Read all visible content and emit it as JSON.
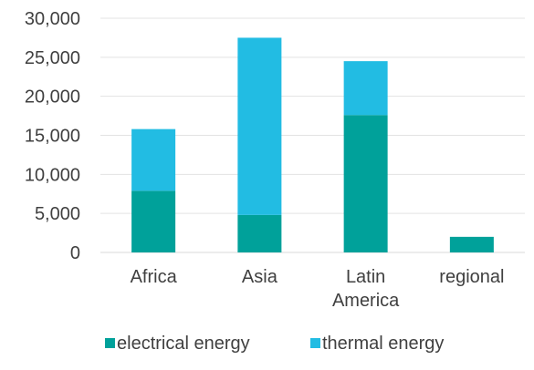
{
  "chart_data": {
    "type": "bar",
    "stacked": true,
    "categories": [
      "Africa",
      "Asia",
      "Latin America",
      "regional"
    ],
    "category_label_lines": [
      [
        "Africa"
      ],
      [
        "Asia"
      ],
      [
        "Latin",
        "America"
      ],
      [
        "regional"
      ]
    ],
    "series": [
      {
        "name": "electrical energy",
        "color": "#00A19A",
        "values": [
          7900,
          4800,
          17600,
          2000
        ]
      },
      {
        "name": "thermal energy",
        "color": "#22BCE3",
        "values": [
          7900,
          22700,
          6900,
          0
        ]
      }
    ],
    "y_ticks": [
      "0",
      "5,000",
      "10,000",
      "15,000",
      "20,000",
      "25,000",
      "30,000"
    ],
    "ylim": [
      0,
      30000
    ],
    "y_tick_step": 5000,
    "grid": true,
    "legend_position": "bottom",
    "title": "",
    "xlabel": "",
    "ylabel": ""
  }
}
